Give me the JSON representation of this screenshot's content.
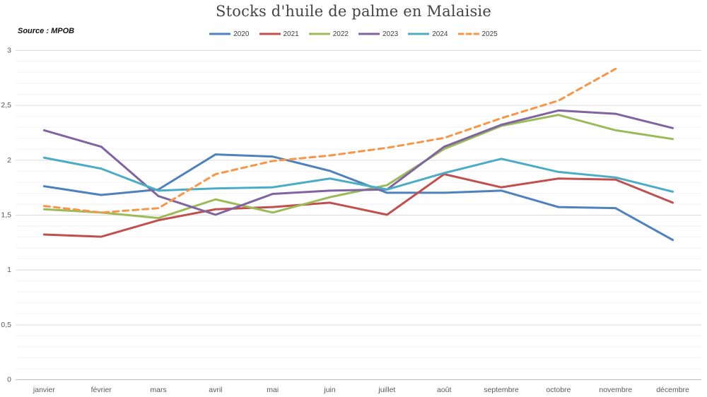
{
  "header": {
    "title": "Stocks d'huile de palme en Malaisie",
    "source": "Source : MPOB"
  },
  "chart_data": {
    "type": "line",
    "title": "Stocks d'huile de palme en Malaisie",
    "source": "Source : MPOB",
    "x": [
      "janvier",
      "février",
      "mars",
      "avril",
      "mai",
      "juin",
      "juillet",
      "août",
      "septembre",
      "octobre",
      "novembre",
      "décembre"
    ],
    "ylim": [
      0,
      3
    ],
    "ytick_step": 0.5,
    "minor_tick_step": 0.1,
    "ytick_labels": [
      "0",
      "0,5",
      "1",
      "1,5",
      "2",
      "2,5",
      "3"
    ],
    "grid": "major+minor horizontal",
    "legend_position": "top-center",
    "series": [
      {
        "name": "2020",
        "color": "#4F81BD",
        "dashed": false,
        "values": [
          1.76,
          1.68,
          1.73,
          2.05,
          2.03,
          1.9,
          1.7,
          1.7,
          1.72,
          1.57,
          1.56,
          1.27
        ]
      },
      {
        "name": "2021",
        "color": "#C0504D",
        "dashed": false,
        "values": [
          1.32,
          1.3,
          1.45,
          1.55,
          1.57,
          1.61,
          1.5,
          1.87,
          1.75,
          1.83,
          1.82,
          1.61
        ]
      },
      {
        "name": "2022",
        "color": "#9BBB59",
        "dashed": false,
        "values": [
          1.55,
          1.52,
          1.47,
          1.64,
          1.52,
          1.66,
          1.77,
          2.1,
          2.31,
          2.41,
          2.27,
          2.19
        ]
      },
      {
        "name": "2023",
        "color": "#8064A2",
        "dashed": false,
        "values": [
          2.27,
          2.12,
          1.67,
          1.5,
          1.69,
          1.72,
          1.73,
          2.12,
          2.32,
          2.45,
          2.42,
          2.29
        ]
      },
      {
        "name": "2024",
        "color": "#4BACC6",
        "dashed": false,
        "values": [
          2.02,
          1.92,
          1.72,
          1.74,
          1.75,
          1.83,
          1.73,
          1.88,
          2.01,
          1.89,
          1.84,
          1.71
        ]
      },
      {
        "name": "2025",
        "color": "#F79646",
        "dashed": true,
        "values": [
          1.58,
          1.52,
          1.56,
          1.87,
          1.99,
          2.04,
          2.11,
          2.2,
          2.38,
          2.54,
          2.83
        ]
      }
    ],
    "colors": {
      "grid_major": "#dcdcdc",
      "grid_minor": "#f2f2f2",
      "axis_line": "#bfbfbf",
      "tick_label": "#595959"
    }
  }
}
